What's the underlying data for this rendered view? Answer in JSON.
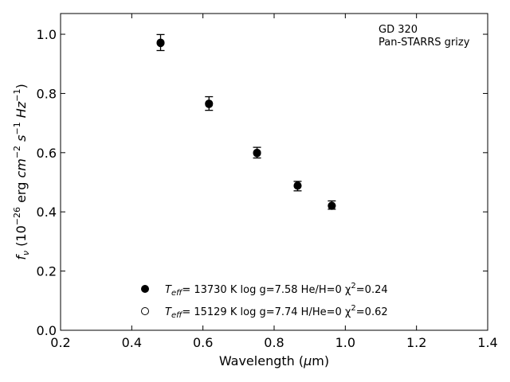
{
  "chart_data": {
    "type": "scatter",
    "xlabel": "Wavelength (μm)",
    "ylabel": "f_ν (10^−26 erg cm^−2 s^−1 Hz^−1)",
    "xlim": [
      0.2,
      1.4
    ],
    "ylim": [
      0.0,
      1.07
    ],
    "xticks": [
      "0.2",
      "0.4",
      "0.6",
      "0.8",
      "1.0",
      "1.2",
      "1.4"
    ],
    "yticks": [
      "0.0",
      "0.2",
      "0.4",
      "0.6",
      "0.8",
      "1.0"
    ],
    "grid": false,
    "annotation": [
      "GD 320",
      "Pan-STARRS grizy"
    ],
    "legend_position": "bottom-center",
    "observed": {
      "x": [
        0.481,
        0.617,
        0.752,
        0.866,
        0.962
      ],
      "y": [
        0.972,
        0.766,
        0.6,
        0.487,
        0.423
      ],
      "yerr": [
        0.027,
        0.023,
        0.018,
        0.016,
        0.014
      ]
    },
    "series": [
      {
        "label": {
          "pre": "T",
          "sub": "eff",
          "mid": "= 13730 K  log g=7.58  He/H=0  χ",
          "sup": "2",
          "post": "=0.24"
        },
        "marker": "filled",
        "x": [
          0.481,
          0.617,
          0.752,
          0.866,
          0.962
        ],
        "y": [
          0.972,
          0.766,
          0.598,
          0.489,
          0.42
        ]
      },
      {
        "label": {
          "pre": "T",
          "sub": "eff",
          "mid": "= 15129 K  log g=7.74  H/He=0  χ",
          "sup": "2",
          "post": "=0.62"
        },
        "marker": "open",
        "x": [
          0.481,
          0.617,
          0.752,
          0.866,
          0.962
        ],
        "y": [
          0.97,
          0.764,
          0.6,
          0.488,
          0.421
        ]
      }
    ]
  }
}
